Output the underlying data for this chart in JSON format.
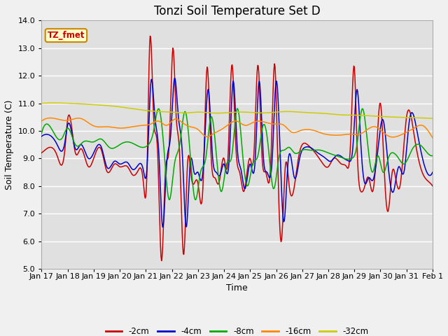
{
  "title": "Tonzi Soil Temperature Set D",
  "xlabel": "Time",
  "ylabel": "Soil Temperature (C)",
  "ylim": [
    5.0,
    14.0
  ],
  "yticks": [
    5.0,
    6.0,
    7.0,
    8.0,
    9.0,
    10.0,
    11.0,
    12.0,
    13.0,
    14.0
  ],
  "colors": {
    "-2cm": "#cc0000",
    "-4cm": "#0000cc",
    "-8cm": "#00aa00",
    "-16cm": "#ff8800",
    "-32cm": "#cccc00"
  },
  "legend_labels": [
    "-2cm",
    "-4cm",
    "-8cm",
    "-16cm",
    "-32cm"
  ],
  "annotation_text": "TZ_fmet",
  "annotation_color": "#cc0000",
  "annotation_bg": "#ffffcc",
  "annotation_border": "#cc8800",
  "background_color": "#f0f0f0",
  "plot_bg": "#e0e0e0",
  "grid_color": "#ffffff",
  "title_fontsize": 12,
  "axis_label_fontsize": 9,
  "tick_fontsize": 8
}
